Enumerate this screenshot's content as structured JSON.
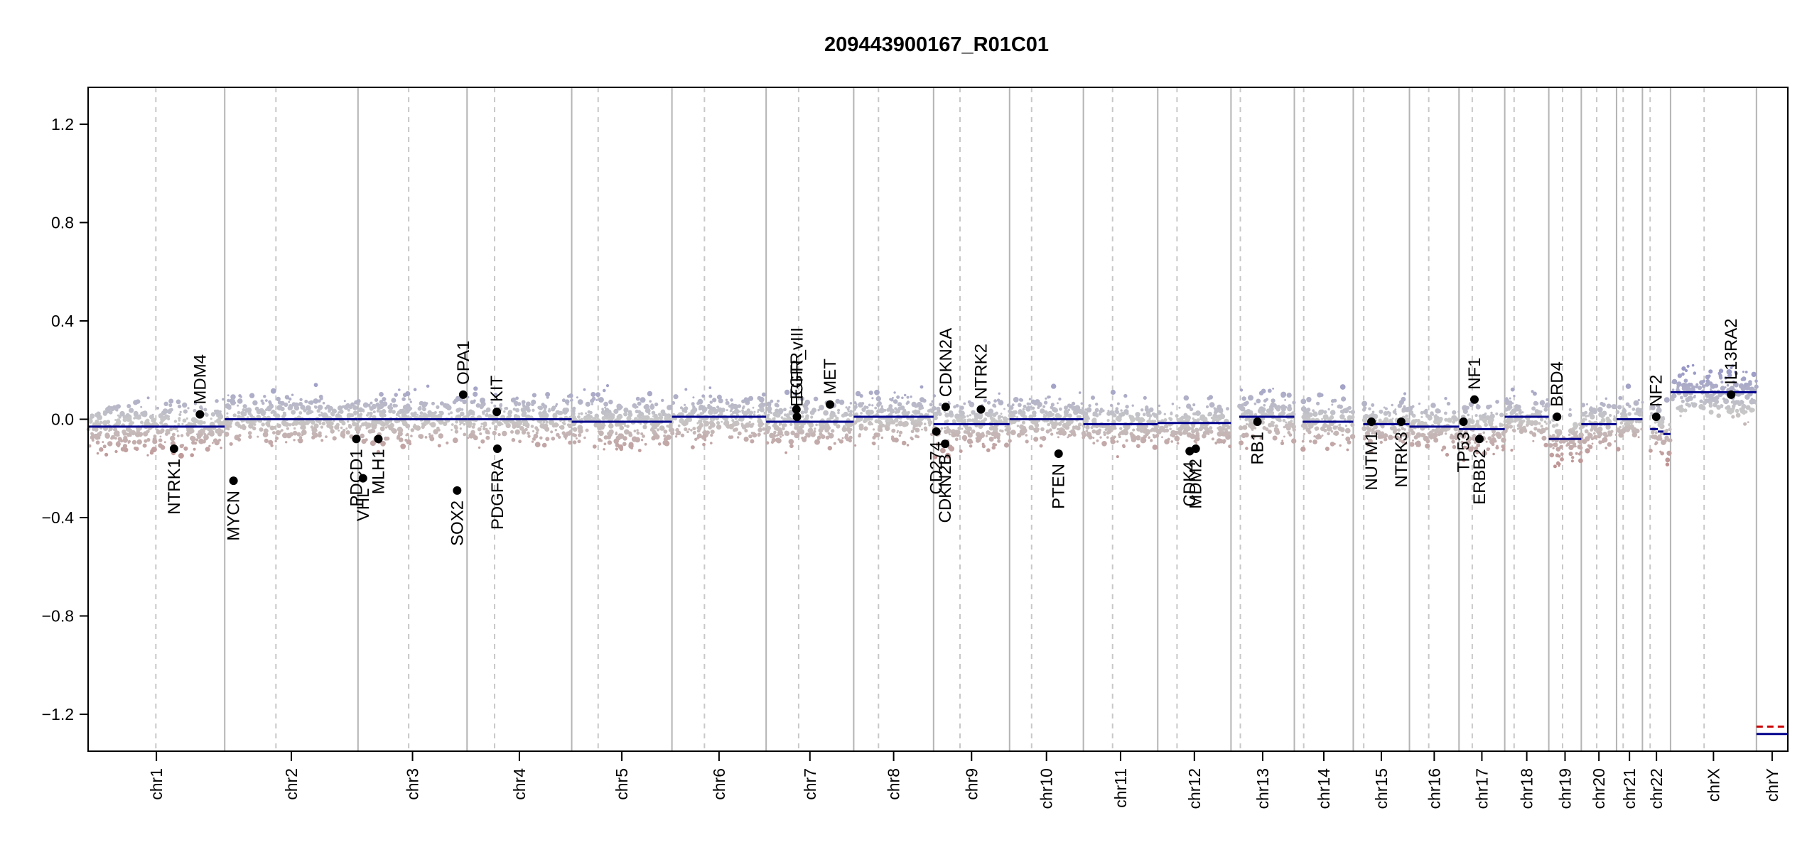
{
  "title": "209443900167_R01C01",
  "chart_data": {
    "type": "scatter",
    "title": "209443900167_R01C01",
    "xlabel": "",
    "ylabel": "",
    "ylim": [
      -1.35,
      1.35
    ],
    "y_ticks": [
      1.2,
      0.8,
      0.4,
      0.0,
      -0.4,
      -0.8,
      -1.2
    ],
    "y_tick_labels": [
      "1.2",
      "0.8",
      "0.4",
      "0.0",
      "−0.4",
      "−0.8",
      "−1.2"
    ],
    "grid": false,
    "colors": {
      "segment": "#00008b",
      "gain_points": "#9a9ac8",
      "loss_points": "#c09090",
      "neutral_points": "#c8c8c8",
      "gene_marker": "#000000",
      "chrY_dashed_segment": "#cc0000",
      "boundary_line": "#b4b4b4",
      "centromere_line": "#c8c8c8"
    },
    "chromosomes": [
      {
        "name": "chr1",
        "start": 0,
        "end": 248,
        "centromere": 123,
        "segments": [
          {
            "from": 0,
            "to": 248,
            "value": -0.03
          }
        ]
      },
      {
        "name": "chr2",
        "start": 248,
        "end": 490,
        "centromere": 341,
        "segments": [
          {
            "from": 248,
            "to": 490,
            "value": 0.0
          }
        ]
      },
      {
        "name": "chr3",
        "start": 490,
        "end": 688,
        "centromere": 582,
        "segments": [
          {
            "from": 490,
            "to": 688,
            "value": 0.0
          }
        ]
      },
      {
        "name": "chr4",
        "start": 688,
        "end": 878,
        "centromere": 738,
        "segments": [
          {
            "from": 688,
            "to": 878,
            "value": 0.0
          }
        ]
      },
      {
        "name": "chr5",
        "start": 878,
        "end": 1060,
        "centromere": 926,
        "segments": [
          {
            "from": 878,
            "to": 1060,
            "value": -0.01
          }
        ]
      },
      {
        "name": "chr6",
        "start": 1060,
        "end": 1231,
        "centromere": 1119,
        "segments": [
          {
            "from": 1060,
            "to": 1231,
            "value": 0.01
          }
        ]
      },
      {
        "name": "chr7",
        "start": 1231,
        "end": 1390,
        "centromere": 1290,
        "segments": [
          {
            "from": 1231,
            "to": 1390,
            "value": -0.01
          }
        ]
      },
      {
        "name": "chr8",
        "start": 1390,
        "end": 1535,
        "centromere": 1435,
        "segments": [
          {
            "from": 1390,
            "to": 1535,
            "value": 0.01
          }
        ]
      },
      {
        "name": "chr9",
        "start": 1535,
        "end": 1673,
        "centromere": 1583,
        "segments": [
          {
            "from": 1535,
            "to": 1673,
            "value": -0.02
          }
        ]
      },
      {
        "name": "chr10",
        "start": 1673,
        "end": 1807,
        "centromere": 1713,
        "segments": [
          {
            "from": 1673,
            "to": 1807,
            "value": 0.0
          }
        ]
      },
      {
        "name": "chr11",
        "start": 1807,
        "end": 1942,
        "centromere": 1860,
        "segments": [
          {
            "from": 1807,
            "to": 1942,
            "value": -0.02
          }
        ]
      },
      {
        "name": "chr12",
        "start": 1942,
        "end": 2075,
        "centromere": 1977,
        "segments": [
          {
            "from": 1942,
            "to": 2075,
            "value": -0.015
          }
        ]
      },
      {
        "name": "chr13",
        "start": 2075,
        "end": 2190,
        "centromere": 2092,
        "segments": [
          {
            "from": 2090,
            "to": 2190,
            "value": 0.01
          }
        ]
      },
      {
        "name": "chr14",
        "start": 2190,
        "end": 2297,
        "centromere": 2207,
        "segments": [
          {
            "from": 2205,
            "to": 2297,
            "value": -0.01
          }
        ]
      },
      {
        "name": "chr15",
        "start": 2297,
        "end": 2399,
        "centromere": 2316,
        "segments": [
          {
            "from": 2315,
            "to": 2399,
            "value": -0.02
          }
        ]
      },
      {
        "name": "chr16",
        "start": 2399,
        "end": 2489,
        "centromere": 2434,
        "segments": [
          {
            "from": 2399,
            "to": 2489,
            "value": -0.03
          }
        ]
      },
      {
        "name": "chr17",
        "start": 2489,
        "end": 2572,
        "centromere": 2513,
        "segments": [
          {
            "from": 2489,
            "to": 2572,
            "value": -0.04
          }
        ]
      },
      {
        "name": "chr18",
        "start": 2572,
        "end": 2652,
        "centromere": 2589,
        "segments": [
          {
            "from": 2572,
            "to": 2652,
            "value": 0.01
          }
        ]
      },
      {
        "name": "chr19",
        "start": 2652,
        "end": 2711,
        "centromere": 2677,
        "segments": [
          {
            "from": 2652,
            "to": 2711,
            "value": -0.08
          }
        ]
      },
      {
        "name": "chr20",
        "start": 2711,
        "end": 2775,
        "centromere": 2739,
        "segments": [
          {
            "from": 2711,
            "to": 2775,
            "value": -0.02
          }
        ]
      },
      {
        "name": "chr21",
        "start": 2775,
        "end": 2822,
        "centromere": 2787,
        "segments": [
          {
            "from": 2775,
            "to": 2822,
            "value": 0.0
          }
        ]
      },
      {
        "name": "chr22",
        "start": 2822,
        "end": 2873,
        "centromere": 2836,
        "segments": [
          {
            "from": 2836,
            "to": 2850,
            "value": -0.04
          },
          {
            "from": 2850,
            "to": 2860,
            "value": -0.05
          },
          {
            "from": 2860,
            "to": 2873,
            "value": -0.06
          }
        ]
      },
      {
        "name": "chrX",
        "start": 2873,
        "end": 3029,
        "centromere": 2934,
        "segments": [
          {
            "from": 2873,
            "to": 3029,
            "value": 0.11
          }
        ]
      },
      {
        "name": "chrY",
        "start": 3029,
        "end": 3086,
        "centromere": null,
        "segments": [
          {
            "from": 3029,
            "to": 3086,
            "value": -1.28
          }
        ]
      }
    ],
    "chrY_dashed_segment": {
      "from": 3029,
      "to": 3086,
      "value": -1.25
    },
    "genes": [
      {
        "name": "NTRK1",
        "x": 156,
        "y": -0.12
      },
      {
        "name": "MDM4",
        "x": 203,
        "y": 0.02
      },
      {
        "name": "MYCN",
        "x": 264,
        "y": -0.25
      },
      {
        "name": "PDCD1",
        "x": 487,
        "y": -0.08
      },
      {
        "name": "VHL",
        "x": 499,
        "y": -0.24
      },
      {
        "name": "MLH1",
        "x": 527,
        "y": -0.08
      },
      {
        "name": "SOX2",
        "x": 670,
        "y": -0.29
      },
      {
        "name": "OPA1",
        "x": 681,
        "y": 0.1
      },
      {
        "name": "KIT",
        "x": 742,
        "y": 0.03
      },
      {
        "name": "PDGFRA",
        "x": 743,
        "y": -0.12
      },
      {
        "name": "EGFR",
        "x": 1286,
        "y": 0.04
      },
      {
        "name": "EGFR_vIII",
        "x": 1287,
        "y": 0.01
      },
      {
        "name": "MET",
        "x": 1347,
        "y": 0.06
      },
      {
        "name": "CD274",
        "x": 1540,
        "y": -0.05
      },
      {
        "name": "CDKN2B",
        "x": 1556,
        "y": -0.1
      },
      {
        "name": "CDKN2A",
        "x": 1557,
        "y": 0.05
      },
      {
        "name": "NTRK2",
        "x": 1621,
        "y": 0.04
      },
      {
        "name": "PTEN",
        "x": 1762,
        "y": -0.14
      },
      {
        "name": "CDK4",
        "x": 2000,
        "y": -0.13
      },
      {
        "name": "MDM2",
        "x": 2011,
        "y": -0.12
      },
      {
        "name": "RB1",
        "x": 2123,
        "y": -0.01
      },
      {
        "name": "NUTM1",
        "x": 2330,
        "y": -0.01
      },
      {
        "name": "NTRK3",
        "x": 2384,
        "y": -0.01
      },
      {
        "name": "TP53",
        "x": 2497,
        "y": -0.01
      },
      {
        "name": "NF1",
        "x": 2517,
        "y": 0.08
      },
      {
        "name": "ERBB2",
        "x": 2526,
        "y": -0.08
      },
      {
        "name": "BRD4",
        "x": 2667,
        "y": 0.01
      },
      {
        "name": "NF2",
        "x": 2847,
        "y": 0.01
      },
      {
        "name": "IL13RA2",
        "x": 2983,
        "y": 0.1
      }
    ]
  }
}
